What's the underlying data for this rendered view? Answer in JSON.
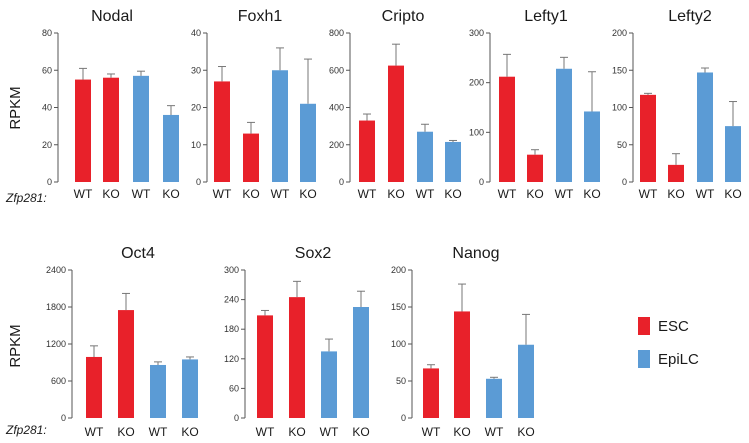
{
  "labels": {
    "ylabel": "RPKM",
    "genotype": "Zfp281:"
  },
  "colors": {
    "esc": "#e8212a",
    "epilc": "#5b9bd5",
    "axis": "#555555",
    "error": "#777777"
  },
  "legend": [
    {
      "label": "ESC",
      "color": "#e8212a"
    },
    {
      "label": "EpiLC",
      "color": "#5b9bd5"
    }
  ],
  "chart_data": [
    {
      "type": "bar",
      "title": "Nodal",
      "categories": [
        "WT",
        "KO",
        "WT",
        "KO"
      ],
      "groups": [
        "ESC",
        "ESC",
        "EpiLC",
        "EpiLC"
      ],
      "values": [
        55,
        56,
        57,
        36
      ],
      "errors": [
        6,
        2,
        2.5,
        5
      ],
      "ylim": [
        0,
        80
      ],
      "yticks": [
        0,
        20,
        40,
        60,
        80
      ],
      "ylabel": "RPKM"
    },
    {
      "type": "bar",
      "title": "Foxh1",
      "categories": [
        "WT",
        "KO",
        "WT",
        "KO"
      ],
      "groups": [
        "ESC",
        "ESC",
        "EpiLC",
        "EpiLC"
      ],
      "values": [
        27,
        13,
        30,
        21
      ],
      "errors": [
        4,
        3,
        6,
        12
      ],
      "ylim": [
        0,
        40
      ],
      "yticks": [
        0,
        10,
        20,
        30,
        40
      ],
      "ylabel": ""
    },
    {
      "type": "bar",
      "title": "Cripto",
      "categories": [
        "WT",
        "KO",
        "WT",
        "KO"
      ],
      "groups": [
        "ESC",
        "ESC",
        "EpiLC",
        "EpiLC"
      ],
      "values": [
        330,
        625,
        270,
        215
      ],
      "errors": [
        35,
        115,
        40,
        8
      ],
      "ylim": [
        0,
        800
      ],
      "yticks": [
        0,
        200,
        400,
        600,
        800
      ],
      "ylabel": ""
    },
    {
      "type": "bar",
      "title": "Lefty1",
      "categories": [
        "WT",
        "KO",
        "WT",
        "KO"
      ],
      "groups": [
        "ESC",
        "ESC",
        "EpiLC",
        "EpiLC"
      ],
      "values": [
        212,
        55,
        228,
        142
      ],
      "errors": [
        45,
        10,
        23,
        80
      ],
      "ylim": [
        0,
        300
      ],
      "yticks": [
        0,
        100,
        200,
        300
      ],
      "ylabel": ""
    },
    {
      "type": "bar",
      "title": "Lefty2",
      "categories": [
        "WT",
        "KO",
        "WT",
        "KO"
      ],
      "groups": [
        "ESC",
        "ESC",
        "EpiLC",
        "EpiLC"
      ],
      "values": [
        117,
        23,
        147,
        75
      ],
      "errors": [
        2,
        15,
        6,
        33
      ],
      "ylim": [
        0,
        200
      ],
      "yticks": [
        0,
        50,
        100,
        150,
        200
      ],
      "ylabel": ""
    },
    {
      "type": "bar",
      "title": "Oct4",
      "categories": [
        "WT",
        "KO",
        "WT",
        "KO"
      ],
      "groups": [
        "ESC",
        "ESC",
        "EpiLC",
        "EpiLC"
      ],
      "values": [
        990,
        1750,
        860,
        950
      ],
      "errors": [
        180,
        270,
        50,
        40
      ],
      "ylim": [
        0,
        2400
      ],
      "yticks": [
        0,
        600,
        1200,
        1800,
        2400
      ],
      "ylabel": "RPKM"
    },
    {
      "type": "bar",
      "title": "Sox2",
      "categories": [
        "WT",
        "KO",
        "WT",
        "KO"
      ],
      "groups": [
        "ESC",
        "ESC",
        "EpiLC",
        "EpiLC"
      ],
      "values": [
        208,
        245,
        135,
        225
      ],
      "errors": [
        10,
        32,
        25,
        32
      ],
      "ylim": [
        0,
        300
      ],
      "yticks": [
        0,
        60,
        120,
        180,
        240,
        300
      ],
      "ylabel": ""
    },
    {
      "type": "bar",
      "title": "Nanog",
      "categories": [
        "WT",
        "KO",
        "WT",
        "KO"
      ],
      "groups": [
        "ESC",
        "ESC",
        "EpiLC",
        "EpiLC"
      ],
      "values": [
        67,
        144,
        53,
        99
      ],
      "errors": [
        5,
        37,
        2,
        41
      ],
      "ylim": [
        0,
        200
      ],
      "yticks": [
        0,
        50,
        100,
        150,
        200
      ],
      "ylabel": ""
    }
  ]
}
